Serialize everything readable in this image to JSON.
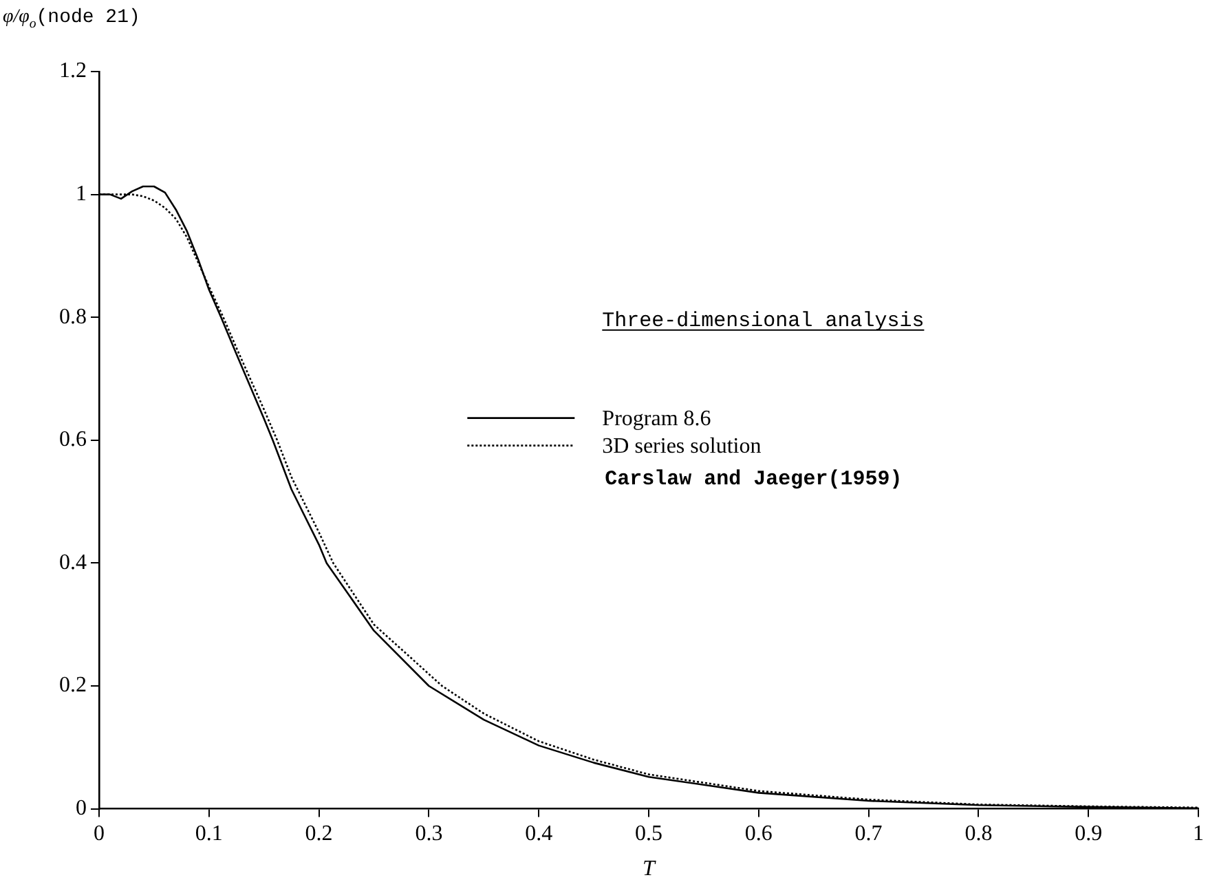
{
  "chart_data": {
    "type": "line",
    "xlabel": "T",
    "ylabel": "φ/φ$_{o}$(node 21)",
    "xlim": [
      0,
      1
    ],
    "xticks": [
      0,
      0.1,
      0.2,
      0.3,
      0.4,
      0.5,
      0.6,
      0.7,
      0.8,
      0.9,
      1
    ],
    "ylim": [
      0,
      1.2
    ],
    "yticks": [
      0,
      0.2,
      0.4,
      0.6,
      0.8,
      1,
      1.2
    ],
    "grid": false,
    "legend": "right",
    "marker": "none",
    "annotations": [
      "Three-dimensional analysis",
      "Carslaw and Jaeger(1959)"
    ],
    "series": [
      {
        "name": "Program 8.6",
        "color": "#000000",
        "line_style": "solid",
        "x": [
          0,
          0.01,
          0.02,
          0.03,
          0.04,
          0.05,
          0.06,
          0.07,
          0.08,
          0.09,
          0.1,
          0.111,
          0.125,
          0.15,
          0.158,
          0.175,
          0.2,
          0.207,
          0.25,
          0.3,
          0.35,
          0.4,
          0.45,
          0.5,
          0.6,
          0.7,
          0.8,
          0.9,
          1
        ],
        "values": [
          1,
          1,
          0.993,
          1.005,
          1.013,
          1.013,
          1.003,
          0.975,
          0.94,
          0.895,
          0.845,
          0.8,
          0.74,
          0.635,
          0.6,
          0.52,
          0.43,
          0.4,
          0.29,
          0.2,
          0.145,
          0.103,
          0.075,
          0.052,
          0.026,
          0.013,
          0.006,
          0.003,
          0.001
        ]
      },
      {
        "name": "3D series solution",
        "color": "#000000",
        "line_style": "dotted",
        "x": [
          0,
          0.01,
          0.02,
          0.03,
          0.04,
          0.05,
          0.06,
          0.07,
          0.08,
          0.09,
          0.1,
          0.113,
          0.125,
          0.15,
          0.162,
          0.175,
          0.2,
          0.213,
          0.25,
          0.312,
          0.35,
          0.4,
          0.45,
          0.5,
          0.6,
          0.7,
          0.8,
          0.9,
          1
        ],
        "values": [
          1,
          1,
          1,
          1,
          0.997,
          0.99,
          0.978,
          0.96,
          0.93,
          0.89,
          0.85,
          0.8,
          0.75,
          0.65,
          0.6,
          0.54,
          0.45,
          0.4,
          0.3,
          0.2,
          0.155,
          0.11,
          0.08,
          0.056,
          0.029,
          0.015,
          0.007,
          0.004,
          0.002
        ]
      }
    ]
  }
}
